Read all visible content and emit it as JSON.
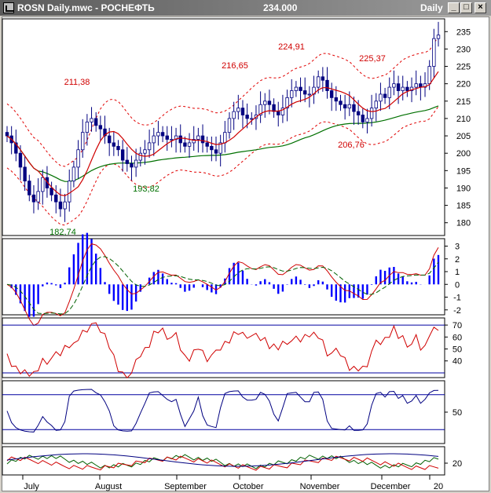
{
  "window": {
    "title": "ROSN Daily.mwc - РОСНЕФТЬ",
    "price": "234.000",
    "period": "Daily"
  },
  "window_buttons": {
    "minimize": "_",
    "maximize": "□",
    "close": "×"
  },
  "colors": {
    "up": "#000080",
    "down": "#000080",
    "ma_fast": "#d00000",
    "ma_slow": "#007000",
    "envelope": "#e00000",
    "macd_hist": "#0000ff",
    "macd_line": "#d00000",
    "signal_line": "#006000",
    "rsi": "#d00000",
    "stoch": "#000080",
    "hline": "#0000a0"
  },
  "x_axis": {
    "months": [
      "July",
      "August",
      "September",
      "October",
      "November",
      "December",
      "20"
    ]
  },
  "chart_data": [
    {
      "type": "candlestick",
      "panel": "price",
      "ylim": [
        177,
        238
      ],
      "yticks": [
        180,
        185,
        190,
        195,
        200,
        205,
        210,
        215,
        220,
        225,
        230,
        235
      ],
      "annotations": [
        {
          "text": "211,38",
          "color": "#d00000"
        },
        {
          "text": "216,65",
          "color": "#d00000"
        },
        {
          "text": "224,91",
          "color": "#d00000"
        },
        {
          "text": "225,37",
          "color": "#d00000"
        },
        {
          "text": "206,76",
          "color": "#d00000"
        },
        {
          "text": "193,82",
          "color": "#007000"
        },
        {
          "text": "182,74",
          "color": "#007000"
        }
      ],
      "close": [
        205,
        203,
        200,
        196,
        192,
        188,
        186,
        189,
        193,
        190,
        188,
        186,
        184,
        186,
        192,
        196,
        201,
        206,
        209,
        210,
        208,
        207,
        205,
        203,
        202,
        201,
        198,
        197,
        196,
        198,
        200,
        201,
        203,
        205,
        206,
        205,
        204,
        204,
        205,
        203,
        202,
        203,
        204,
        205,
        203,
        202,
        201,
        200,
        203,
        206,
        210,
        212,
        213,
        211,
        210,
        210,
        211,
        214,
        215,
        214,
        212,
        211,
        213,
        216,
        218,
        219,
        218,
        217,
        217,
        219,
        222,
        221,
        218,
        216,
        215,
        214,
        213,
        214,
        212,
        211,
        209,
        210,
        213,
        215,
        217,
        216,
        219,
        220,
        218,
        219,
        218,
        219,
        220,
        219,
        220,
        225,
        233,
        234
      ]
    },
    {
      "type": "macd",
      "panel": "macd",
      "ylim": [
        -2.2,
        3.4
      ],
      "yticks": [
        -2,
        -1,
        0,
        1,
        2,
        3
      ]
    },
    {
      "type": "line",
      "panel": "rsi",
      "name": "RSI",
      "ylim": [
        28,
        74
      ],
      "yticks": [
        40,
        50,
        60,
        70
      ],
      "levels": [
        70,
        30
      ]
    },
    {
      "type": "line",
      "panel": "stochastic",
      "ylim": [
        0,
        100
      ],
      "yticks": [
        50
      ],
      "levels": [
        80,
        20
      ]
    },
    {
      "type": "line",
      "panel": "dmi",
      "ylim": [
        8,
        38
      ],
      "yticks": [
        20
      ]
    }
  ]
}
